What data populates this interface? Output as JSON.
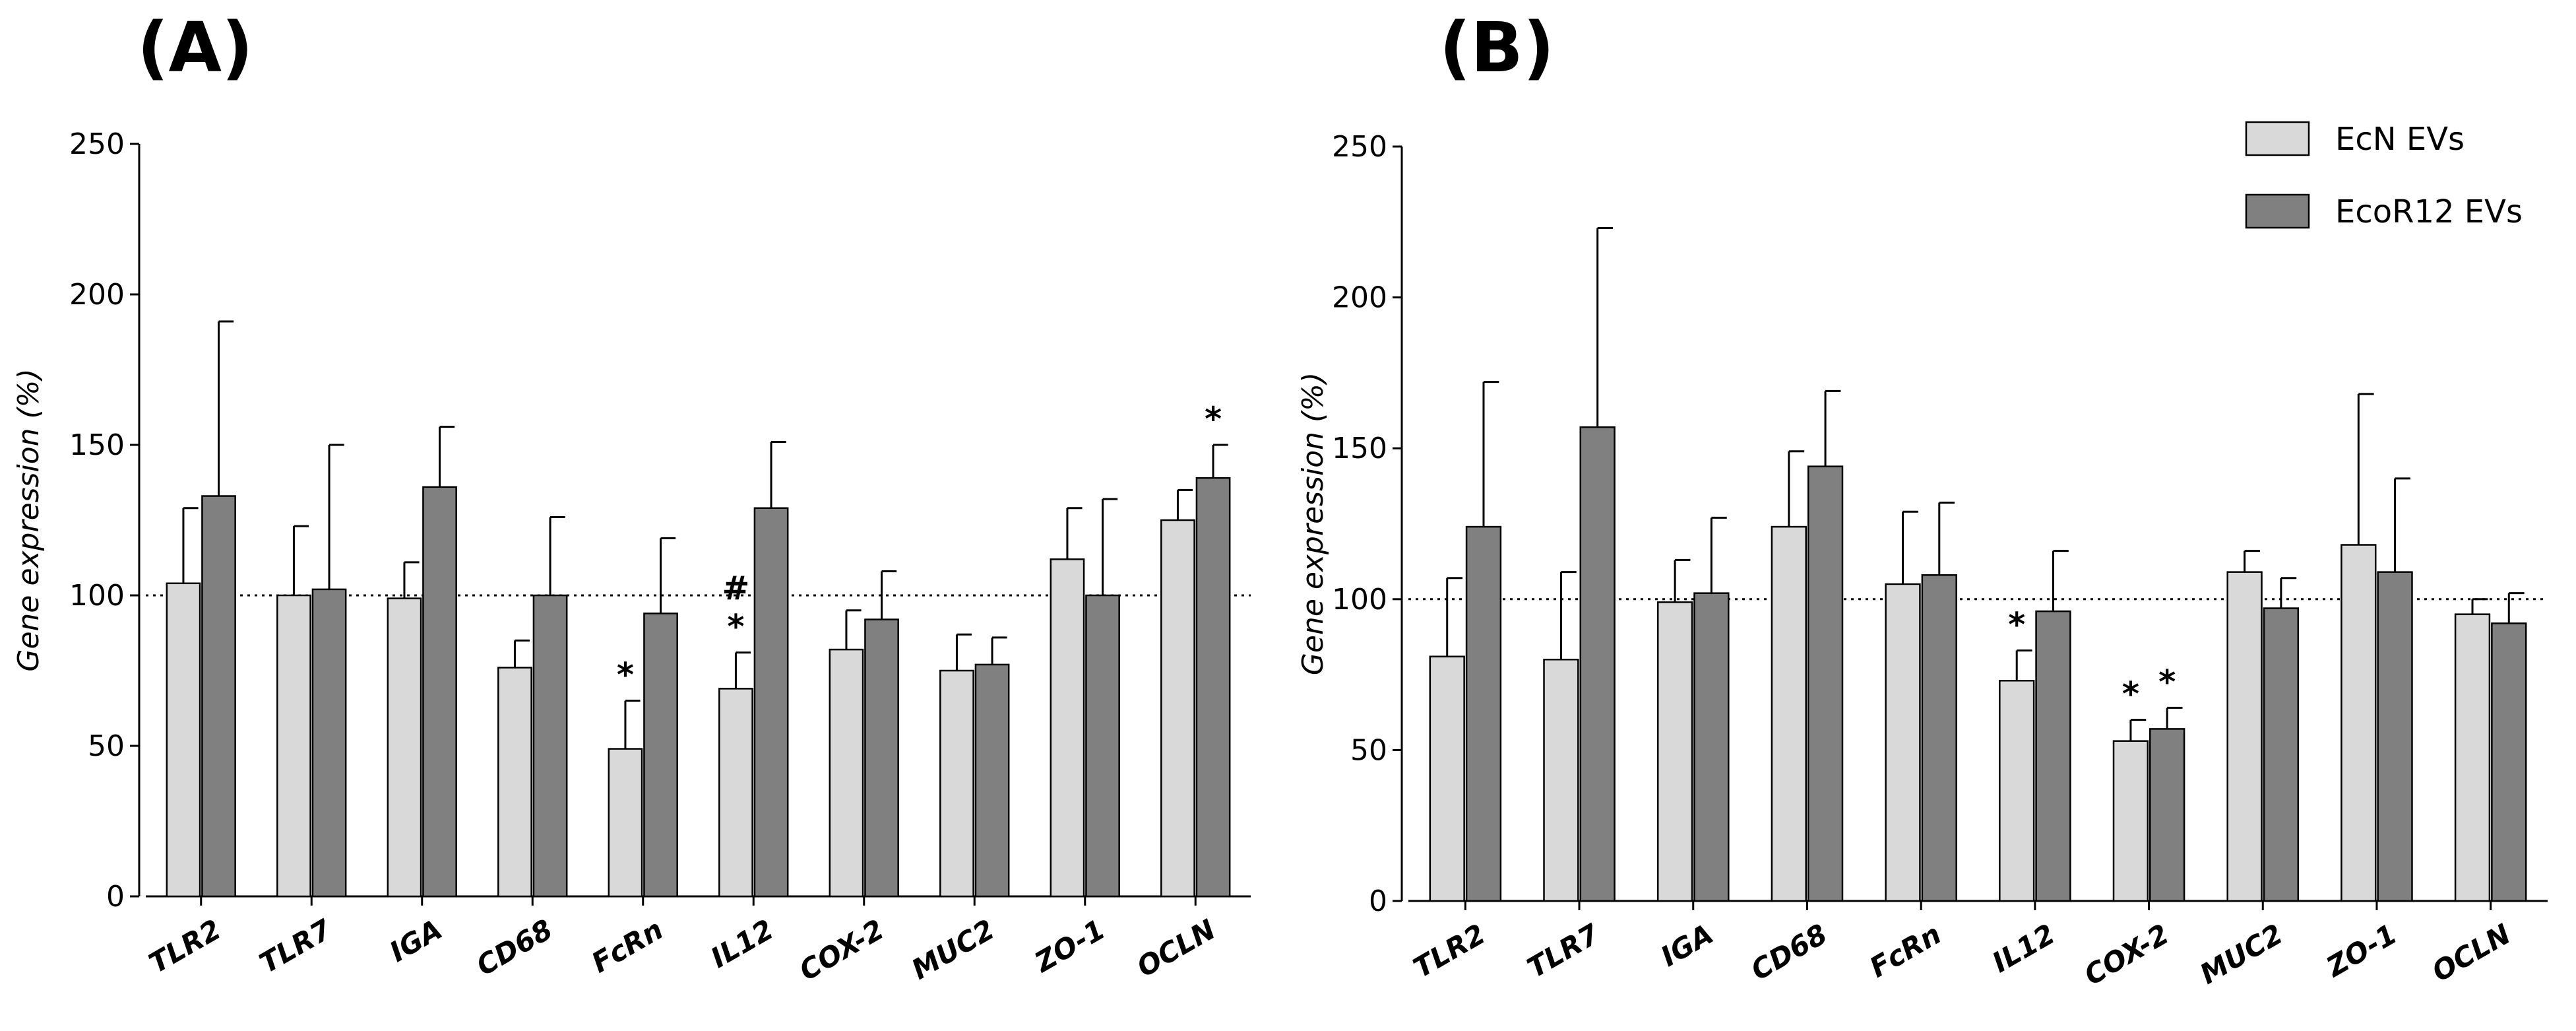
{
  "chart_data": [
    {
      "type": "bar",
      "panel_label": "(A)",
      "ylabel": "Gene expression (%)",
      "ylim": [
        0,
        250
      ],
      "yticks": [
        "0",
        "50",
        "100",
        "150",
        "200",
        "250"
      ],
      "reference_line": 100,
      "categories": [
        "TLR2",
        "TLR7",
        "IGA",
        "CD68",
        "FcRn",
        "IL12",
        "COX-2",
        "MUC2",
        "ZO-1",
        "OCLN"
      ],
      "series": [
        {
          "name": "EcN EVs",
          "color": "#d9d9d9",
          "values": [
            104,
            100,
            99,
            76,
            49,
            69,
            82,
            75,
            112,
            125
          ],
          "errors": [
            25,
            23,
            12,
            9,
            16,
            12,
            13,
            12,
            17,
            10
          ]
        },
        {
          "name": "EcoR12 EVs",
          "color": "#808080",
          "values": [
            133,
            102,
            136,
            100,
            94,
            129,
            92,
            77,
            100,
            139
          ],
          "errors": [
            58,
            48,
            20,
            26,
            25,
            22,
            16,
            9,
            32,
            11
          ]
        }
      ],
      "annotations": [
        {
          "category": "FcRn",
          "series": "EcN EVs",
          "marks": [
            "*"
          ]
        },
        {
          "category": "IL12",
          "series": "EcN EVs",
          "marks": [
            "#",
            "*"
          ]
        },
        {
          "category": "OCLN",
          "series": "EcoR12 EVs",
          "marks": [
            "*"
          ]
        }
      ]
    },
    {
      "type": "bar",
      "panel_label": "(B)",
      "ylabel": "Gene expression (%)",
      "ylim": [
        0,
        250
      ],
      "yticks": [
        "0",
        "50",
        "100",
        "150",
        "200",
        "250"
      ],
      "reference_line": 100,
      "categories": [
        "TLR2",
        "TLR7",
        "IGA",
        "CD68",
        "FcRn",
        "IL12",
        "COX-2",
        "MUC2",
        "ZO-1",
        "OCLN"
      ],
      "legend": [
        "EcN EVs",
        "EcoR12 EVs"
      ],
      "legend_position": "top-right",
      "series": [
        {
          "name": "EcN EVs",
          "color": "#d9d9d9",
          "values": [
            81,
            80,
            99,
            124,
            105,
            73,
            53,
            109,
            118,
            95
          ],
          "errors": [
            26,
            29,
            14,
            25,
            24,
            10,
            7,
            7,
            50,
            5
          ]
        },
        {
          "name": "EcoR12 EVs",
          "color": "#808080",
          "values": [
            124,
            157,
            102,
            144,
            108,
            96,
            57,
            97,
            109,
            92
          ],
          "errors": [
            48,
            66,
            25,
            25,
            24,
            20,
            7,
            10,
            31,
            10
          ]
        }
      ],
      "annotations": [
        {
          "category": "IL12",
          "series": "EcN EVs",
          "marks": [
            "*"
          ]
        },
        {
          "category": "COX-2",
          "series": "EcN EVs",
          "marks": [
            "*"
          ]
        },
        {
          "category": "COX-2",
          "series": "EcoR12 EVs",
          "marks": [
            "*"
          ]
        }
      ]
    }
  ]
}
